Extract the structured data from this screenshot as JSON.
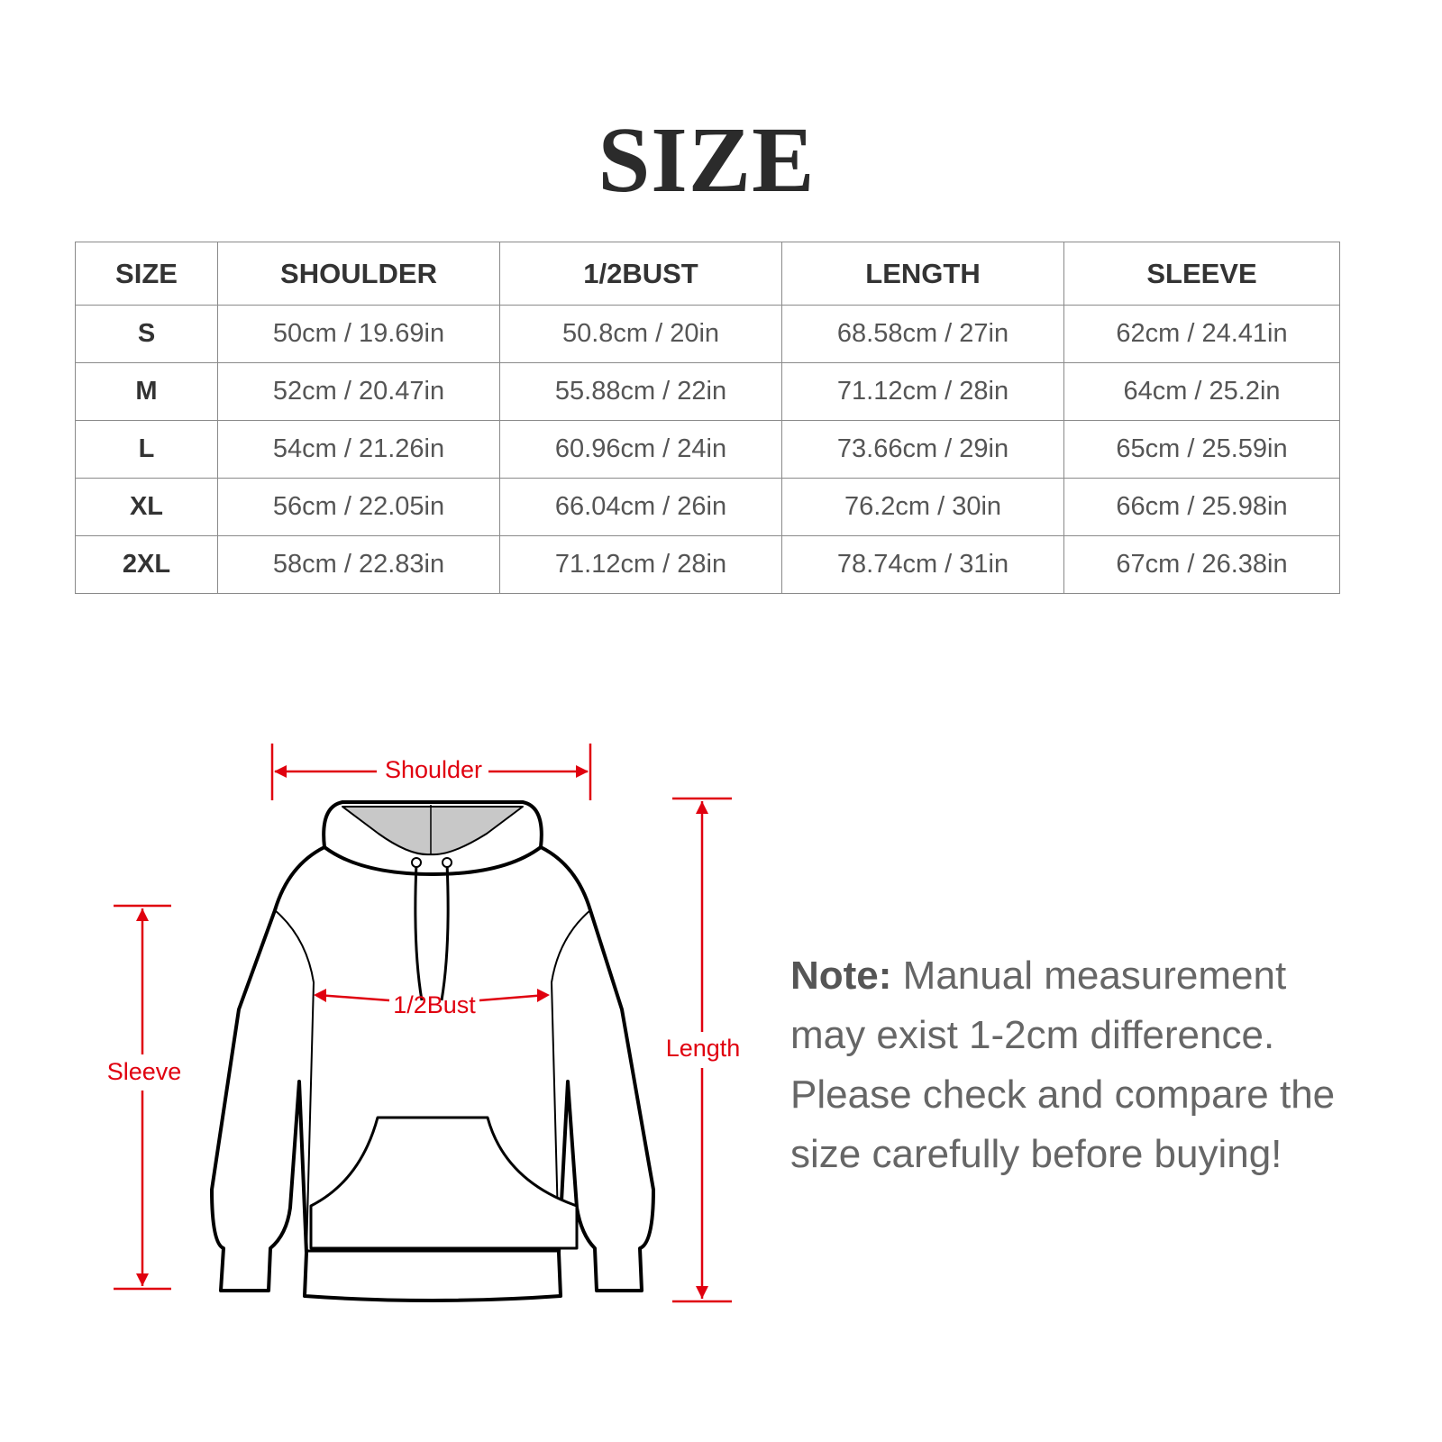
{
  "title": "SIZE",
  "table": {
    "headers": [
      "SIZE",
      "SHOULDER",
      "1/2BUST",
      "LENGTH",
      "SLEEVE"
    ],
    "rows": [
      [
        "S",
        "50cm / 19.69in",
        "50.8cm / 20in",
        "68.58cm / 27in",
        "62cm / 24.41in"
      ],
      [
        "M",
        "52cm / 20.47in",
        "55.88cm / 22in",
        "71.12cm / 28in",
        "64cm / 25.2in"
      ],
      [
        "L",
        "54cm / 21.26in",
        "60.96cm / 24in",
        "73.66cm / 29in",
        "65cm / 25.59in"
      ],
      [
        "XL",
        "56cm / 22.05in",
        "66.04cm / 26in",
        "76.2cm / 30in",
        "66cm / 25.98in"
      ],
      [
        "2XL",
        "58cm / 22.83in",
        "71.12cm / 28in",
        "78.74cm / 31in",
        "67cm / 26.38in"
      ]
    ]
  },
  "diagram": {
    "shoulder_label": "Shoulder",
    "bust_label": "1/2Bust",
    "sleeve_label": "Sleeve",
    "length_label": "Length",
    "annotation_color": "#e0000f"
  },
  "note": {
    "label": "Note:",
    "text": " Manual measurement may exist 1-2cm difference. Please check and compare the size carefully before buying!"
  }
}
